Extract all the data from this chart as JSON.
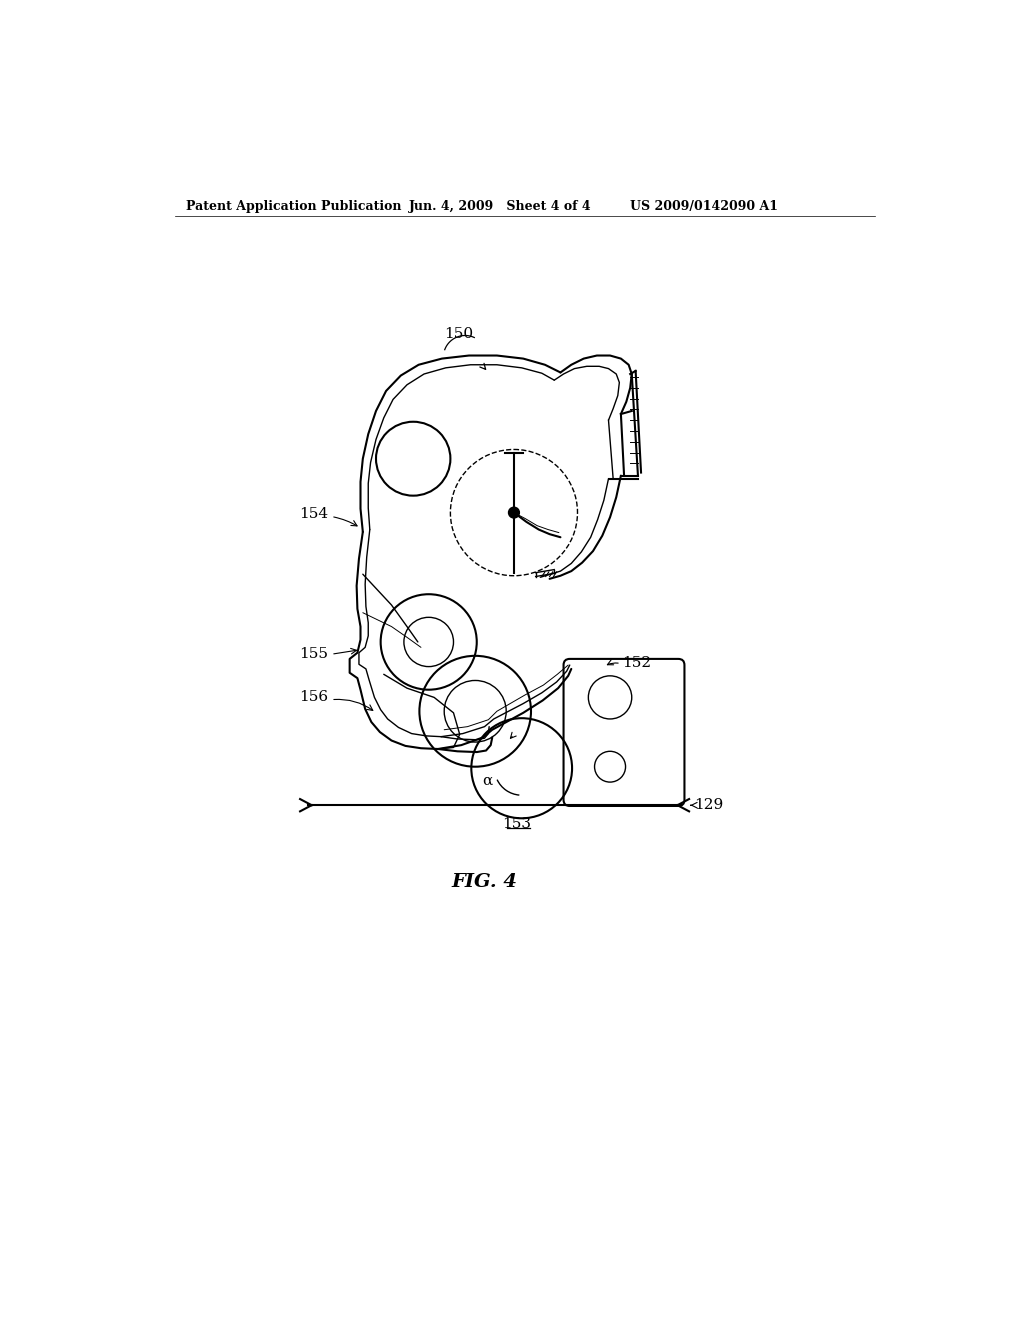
{
  "bg_color": "#ffffff",
  "header_text": "Patent Application Publication",
  "header_date": "Jun. 4, 2009   Sheet 4 of 4",
  "header_patent": "US 2009/0142090 A1",
  "fig_label": "FIG. 4",
  "lw_outer": 1.5,
  "lw_inner": 1.0,
  "lw_thin": 0.7
}
